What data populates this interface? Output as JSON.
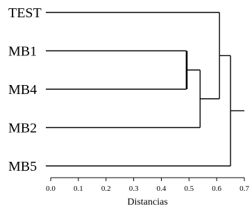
{
  "chart_data": {
    "type": "dendrogram",
    "xlabel": "Distancias",
    "xlim": [
      0.0,
      0.7
    ],
    "ticks": [
      "0.0",
      "0.1",
      "0.2",
      "0.3",
      "0.4",
      "0.5",
      "0.6",
      "0.7"
    ],
    "leaves": [
      "TEST",
      "MB1",
      "MB4",
      "MB2",
      "MB5"
    ],
    "merges": [
      {
        "id": "c1",
        "children": [
          "MB1",
          "MB4"
        ],
        "distance": 0.49
      },
      {
        "id": "c2",
        "children": [
          "c1",
          "MB2"
        ],
        "distance": 0.54
      },
      {
        "id": "c3",
        "children": [
          "TEST",
          "c2"
        ],
        "distance": 0.61
      },
      {
        "id": "c4",
        "children": [
          "c3",
          "MB5"
        ],
        "distance": 0.65
      }
    ],
    "root_distance": 0.7,
    "colors": {
      "line": "#000000",
      "background": "#ffffff"
    }
  }
}
